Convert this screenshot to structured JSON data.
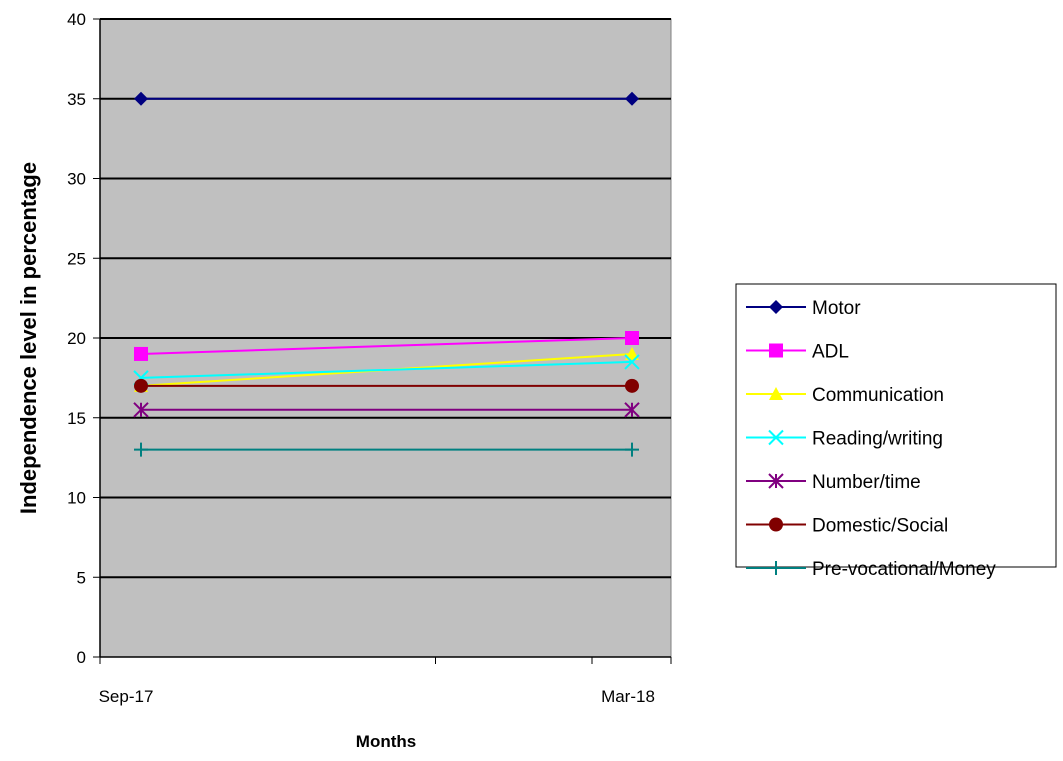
{
  "chart_data": {
    "type": "line",
    "title": "",
    "xlabel": "Months",
    "ylabel": "Independence level in percentage",
    "categories": [
      "Sep-17",
      "Mar-18"
    ],
    "ylim": [
      0,
      40
    ],
    "yticks": [
      0,
      5,
      10,
      15,
      20,
      25,
      30,
      35,
      40
    ],
    "grid": true,
    "plot_background": "#c0c0c0",
    "legend_position": "right",
    "series": [
      {
        "name": "Motor",
        "values": [
          35,
          35
        ],
        "color": "#000080",
        "marker": "diamond"
      },
      {
        "name": "ADL",
        "values": [
          19,
          20
        ],
        "color": "#ff00ff",
        "marker": "square"
      },
      {
        "name": "Communication",
        "values": [
          17,
          19
        ],
        "color": "#ffff00",
        "marker": "triangle"
      },
      {
        "name": "Reading/writing",
        "values": [
          17.5,
          18.5
        ],
        "color": "#00ffff",
        "marker": "x"
      },
      {
        "name": "Number/time",
        "values": [
          15.5,
          15.5
        ],
        "color": "#800080",
        "marker": "asterisk"
      },
      {
        "name": "Domestic/Social",
        "values": [
          17,
          17
        ],
        "color": "#800000",
        "marker": "circle"
      },
      {
        "name": "Pre-vocational/Money",
        "values": [
          13,
          13
        ],
        "color": "#008080",
        "marker": "plus"
      }
    ]
  }
}
